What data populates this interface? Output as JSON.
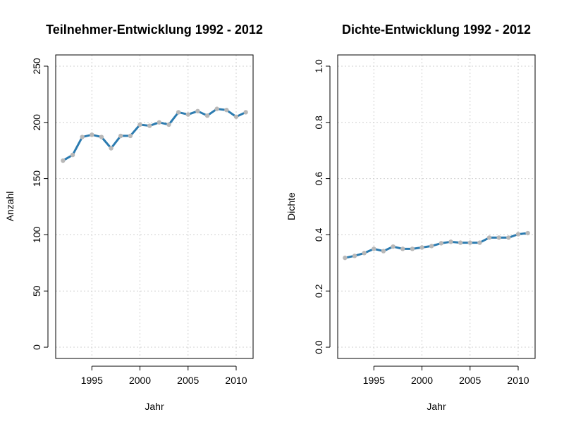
{
  "chart_data": [
    {
      "type": "line",
      "title": "Teilnehmer-Entwicklung 1992 - 2012",
      "xlabel": "Jahr",
      "ylabel": "Anzahl",
      "x": [
        1992,
        1993,
        1994,
        1995,
        1996,
        1997,
        1998,
        1999,
        2000,
        2001,
        2002,
        2003,
        2004,
        2005,
        2006,
        2007,
        2008,
        2009,
        2010,
        2011
      ],
      "series": [
        {
          "values": [
            166,
            171,
            187,
            189,
            187,
            177,
            188,
            188,
            198,
            197,
            200,
            198,
            209,
            207,
            210,
            206,
            212,
            211,
            205,
            209
          ]
        }
      ],
      "xlim": [
        1991.24,
        2011.76
      ],
      "ylim": [
        -10,
        260
      ],
      "xticks": [
        1995,
        2000,
        2005,
        2010
      ],
      "yticks": [
        0,
        50,
        100,
        150,
        200,
        250
      ],
      "grid": true,
      "line_color": "#2b7bb0",
      "point_color": "#b8b8b8"
    },
    {
      "type": "line",
      "title": "Dichte-Entwicklung 1992 - 2012",
      "xlabel": "Jahr",
      "ylabel": "Dichte",
      "x": [
        1992,
        1993,
        1994,
        1995,
        1996,
        1997,
        1998,
        1999,
        2000,
        2001,
        2002,
        2003,
        2004,
        2005,
        2006,
        2007,
        2008,
        2009,
        2010,
        2011
      ],
      "series": [
        {
          "values": [
            0.318,
            0.325,
            0.335,
            0.35,
            0.342,
            0.358,
            0.35,
            0.35,
            0.355,
            0.36,
            0.37,
            0.375,
            0.372,
            0.372,
            0.372,
            0.39,
            0.39,
            0.39,
            0.402,
            0.406
          ]
        }
      ],
      "xlim": [
        1991.24,
        2011.76
      ],
      "ylim": [
        -0.04,
        1.04
      ],
      "xticks": [
        1995,
        2000,
        2005,
        2010
      ],
      "yticks": [
        0.0,
        0.2,
        0.4,
        0.6,
        0.8,
        1.0
      ],
      "ytick_labels": [
        "0.0",
        "0.2",
        "0.4",
        "0.6",
        "0.8",
        "1.0"
      ],
      "grid": true,
      "line_color": "#2b7bb0",
      "point_color": "#b8b8b8"
    }
  ]
}
